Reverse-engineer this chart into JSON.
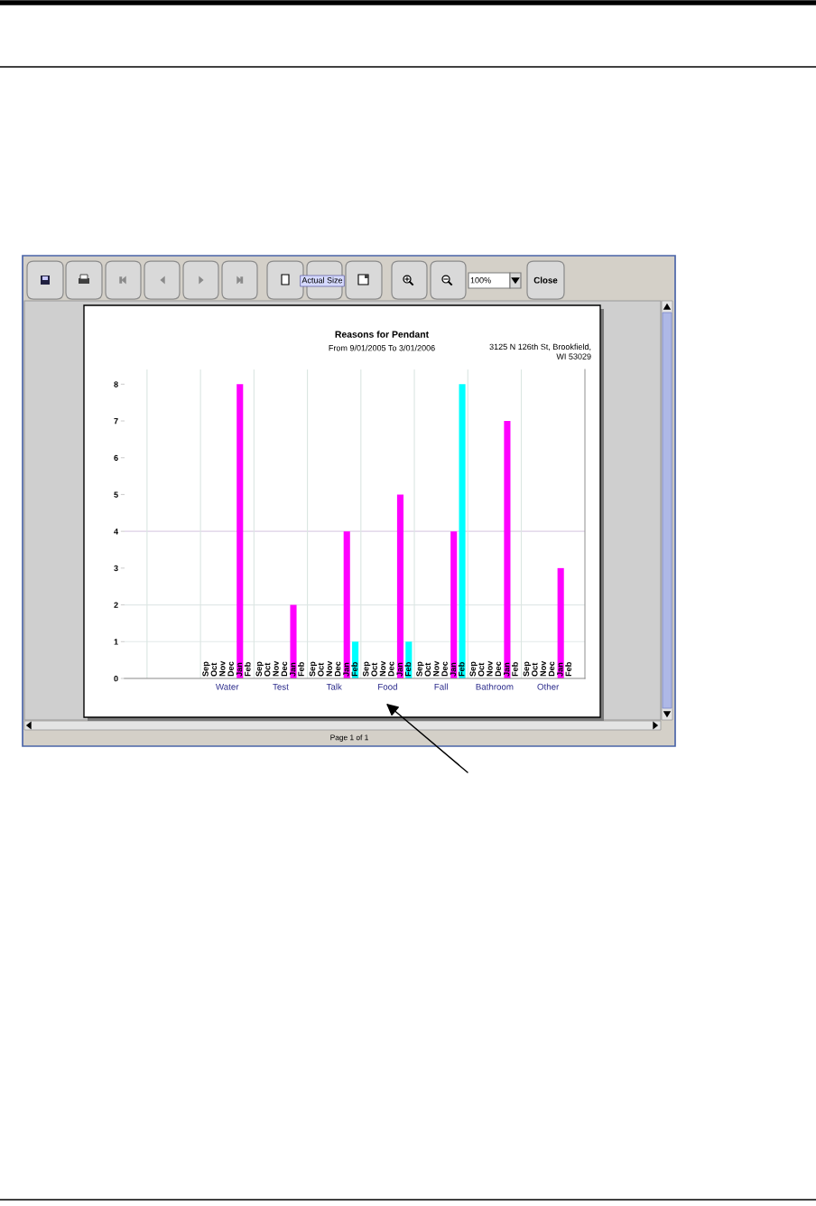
{
  "chart_data": {
    "type": "bar",
    "title": "Reasons for Pendant",
    "subtitle": "From 9/01/2005 To 3/01/2006",
    "annotations": [
      "3125 N 126th St, Brookfield,\nWI 53029",
      "Actual Size",
      "100%",
      "Close",
      "Page 1 of 1"
    ],
    "categories": [
      null,
      "Water",
      "Test",
      "Talk",
      "Food",
      "Fall",
      "Bathroom",
      "Other"
    ],
    "series": [
      {
        "name": "Sep",
        "values": [
          null,
          0,
          0,
          0,
          0,
          0,
          0,
          0
        ]
      },
      {
        "name": "Oct",
        "values": [
          null,
          0,
          0,
          0,
          0,
          0,
          0,
          0
        ]
      },
      {
        "name": "Nov",
        "values": [
          null,
          0,
          0,
          0,
          0,
          0,
          0,
          0
        ]
      },
      {
        "name": "Dec",
        "values": [
          null,
          0,
          0,
          0,
          0,
          0,
          0,
          0
        ]
      },
      {
        "name": "Jan",
        "color": "#ff00ff",
        "values": [
          null,
          8,
          2,
          4,
          5,
          4,
          7,
          3
        ]
      },
      {
        "name": "Feb",
        "color": "#00ffff",
        "values": [
          null,
          0,
          0,
          1,
          1,
          8,
          0,
          0
        ]
      }
    ],
    "ylim": [
      0,
      8.4
    ],
    "yticks": [
      0,
      1,
      2,
      3,
      4,
      5,
      6,
      7,
      8
    ],
    "grid": "x",
    "ref_lines": [
      {
        "axis": "y",
        "value": 1,
        "color": "#e2e8e8"
      },
      {
        "axis": "y",
        "value": 2,
        "color": "#e2e8e8"
      },
      {
        "axis": "y",
        "value": 4,
        "color": "#ddd0e6"
      }
    ]
  }
}
